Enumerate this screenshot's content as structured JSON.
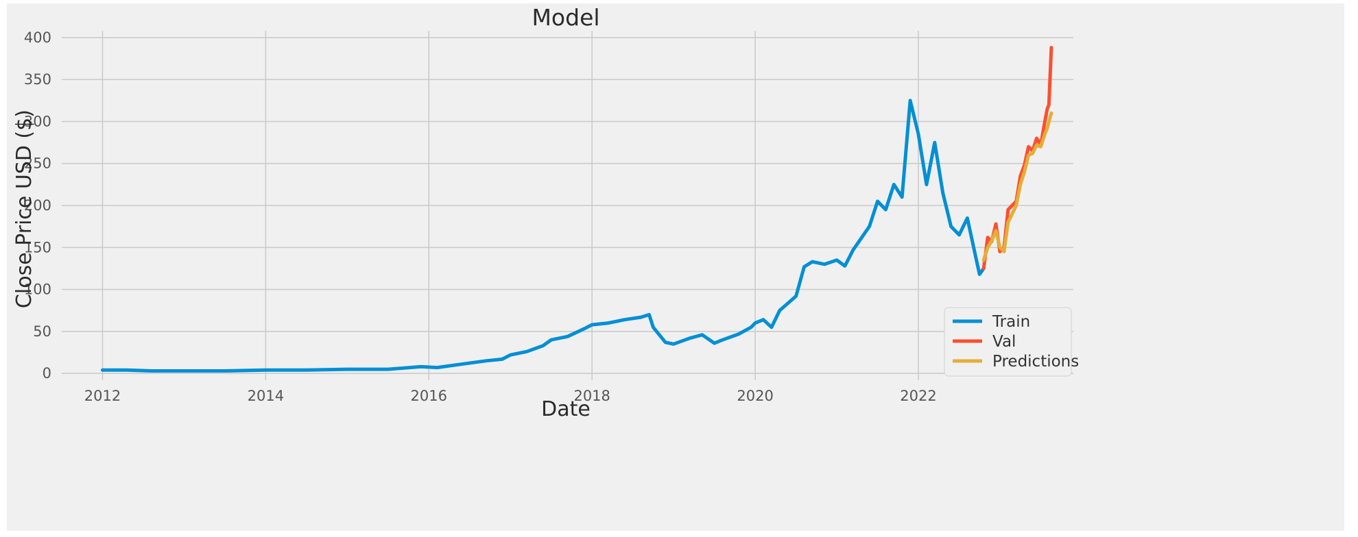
{
  "chart_data": {
    "type": "line",
    "title": "Model",
    "xlabel": "Date",
    "ylabel": "Close Price USD ($)",
    "xlim": [
      2011.5,
      2023.9
    ],
    "ylim": [
      -8,
      408
    ],
    "x_ticks": [
      "2012",
      "2014",
      "2016",
      "2018",
      "2020",
      "2022"
    ],
    "y_ticks": [
      "0",
      "50",
      "100",
      "150",
      "200",
      "250",
      "300",
      "350",
      "400"
    ],
    "grid": true,
    "legend_position": "lower-right",
    "series": [
      {
        "name": "Train",
        "color": "#008fd5",
        "x": [
          2012.0,
          2012.3,
          2012.6,
          2013.0,
          2013.5,
          2014.0,
          2014.5,
          2015.0,
          2015.5,
          2015.9,
          2016.1,
          2016.4,
          2016.7,
          2016.9,
          2017.0,
          2017.2,
          2017.4,
          2017.5,
          2017.7,
          2017.9,
          2018.0,
          2018.2,
          2018.4,
          2018.6,
          2018.7,
          2018.75,
          2018.9,
          2019.0,
          2019.2,
          2019.35,
          2019.5,
          2019.6,
          2019.8,
          2019.95,
          2020.0,
          2020.1,
          2020.2,
          2020.3,
          2020.5,
          2020.6,
          2020.7,
          2020.85,
          2021.0,
          2021.1,
          2021.2,
          2021.4,
          2021.5,
          2021.6,
          2021.7,
          2021.8,
          2021.9,
          2022.0,
          2022.1,
          2022.2,
          2022.3,
          2022.4,
          2022.5,
          2022.6,
          2022.7,
          2022.75,
          2022.8
        ],
        "y": [
          4,
          4,
          3,
          3,
          3,
          4,
          4,
          5,
          5,
          8,
          7,
          11,
          15,
          17,
          22,
          26,
          33,
          40,
          44,
          53,
          58,
          60,
          64,
          67,
          70,
          55,
          37,
          35,
          42,
          46,
          36,
          40,
          47,
          55,
          60,
          64,
          55,
          75,
          92,
          127,
          133,
          130,
          135,
          128,
          147,
          175,
          205,
          195,
          225,
          210,
          325,
          285,
          225,
          275,
          215,
          175,
          165,
          185,
          140,
          118,
          125
        ]
      },
      {
        "name": "Val",
        "color": "#fc4f30",
        "x": [
          2022.8,
          2022.85,
          2022.9,
          2022.95,
          2023.0,
          2023.05,
          2023.1,
          2023.2,
          2023.25,
          2023.3,
          2023.35,
          2023.4,
          2023.45,
          2023.5,
          2023.55,
          2023.58,
          2023.6,
          2023.63
        ],
        "y": [
          125,
          162,
          157,
          178,
          145,
          150,
          195,
          205,
          235,
          248,
          270,
          265,
          280,
          272,
          300,
          315,
          320,
          388
        ]
      },
      {
        "name": "Predictions",
        "color": "#e5ae38",
        "x": [
          2022.8,
          2022.85,
          2022.9,
          2022.95,
          2023.0,
          2023.05,
          2023.1,
          2023.2,
          2023.25,
          2023.3,
          2023.35,
          2023.4,
          2023.45,
          2023.5,
          2023.55,
          2023.58,
          2023.6,
          2023.63
        ],
        "y": [
          135,
          150,
          158,
          170,
          150,
          145,
          180,
          200,
          225,
          240,
          260,
          262,
          272,
          270,
          285,
          292,
          300,
          310
        ]
      }
    ]
  }
}
